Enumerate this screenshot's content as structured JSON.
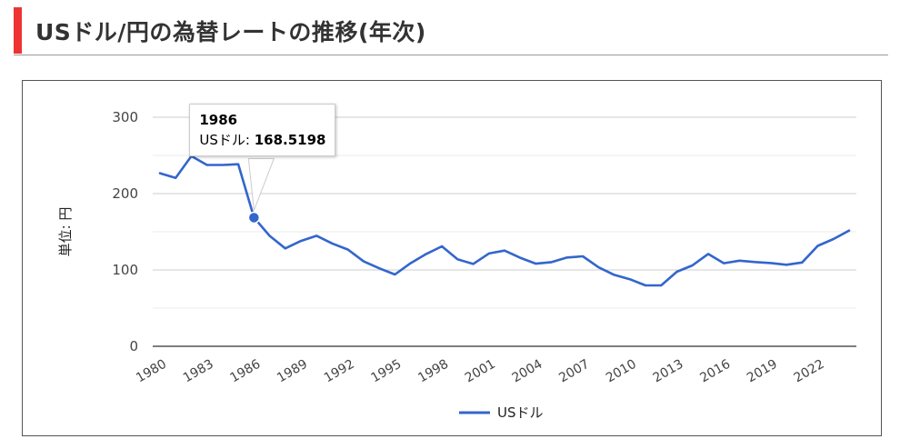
{
  "page": {
    "title": "USドル/円の為替レートの推移(年次)",
    "accent_color": "#ee3333"
  },
  "chart_data": {
    "type": "line",
    "title": "",
    "xlabel": "",
    "ylabel": "単位: 円",
    "ylim": [
      0,
      300
    ],
    "yticks": [
      0,
      100,
      200,
      300
    ],
    "grid": true,
    "legend_position": "bottom",
    "x": [
      1980,
      1981,
      1982,
      1983,
      1984,
      1985,
      1986,
      1987,
      1988,
      1989,
      1990,
      1991,
      1992,
      1993,
      1994,
      1995,
      1996,
      1997,
      1998,
      1999,
      2000,
      2001,
      2002,
      2003,
      2004,
      2005,
      2006,
      2007,
      2008,
      2009,
      2010,
      2011,
      2012,
      2013,
      2014,
      2015,
      2016,
      2017,
      2018,
      2019,
      2020,
      2021,
      2022,
      2023,
      2024
    ],
    "xtick_labels": [
      "1980",
      "1983",
      "1986",
      "1989",
      "1992",
      "1995",
      "1998",
      "2001",
      "2004",
      "2007",
      "2010",
      "2013",
      "2016",
      "2019",
      "2022"
    ],
    "series": [
      {
        "name": "USドル",
        "color": "#3366cc",
        "values": [
          226.7,
          220.5,
          249.1,
          237.5,
          237.5,
          238.5,
          168.5198,
          144.6,
          128.2,
          138.0,
          144.8,
          134.7,
          126.7,
          111.2,
          102.2,
          94.1,
          108.8,
          121.0,
          130.9,
          113.9,
          107.8,
          121.5,
          125.4,
          115.9,
          108.2,
          110.2,
          116.3,
          117.8,
          103.4,
          93.6,
          87.8,
          79.8,
          79.8,
          97.6,
          105.9,
          121.0,
          108.8,
          112.2,
          110.4,
          109.0,
          106.8,
          109.8,
          131.5,
          140.5,
          151.5
        ]
      }
    ],
    "tooltip": {
      "year": "1986",
      "series_label": "USドル:",
      "value": "168.5198"
    }
  }
}
